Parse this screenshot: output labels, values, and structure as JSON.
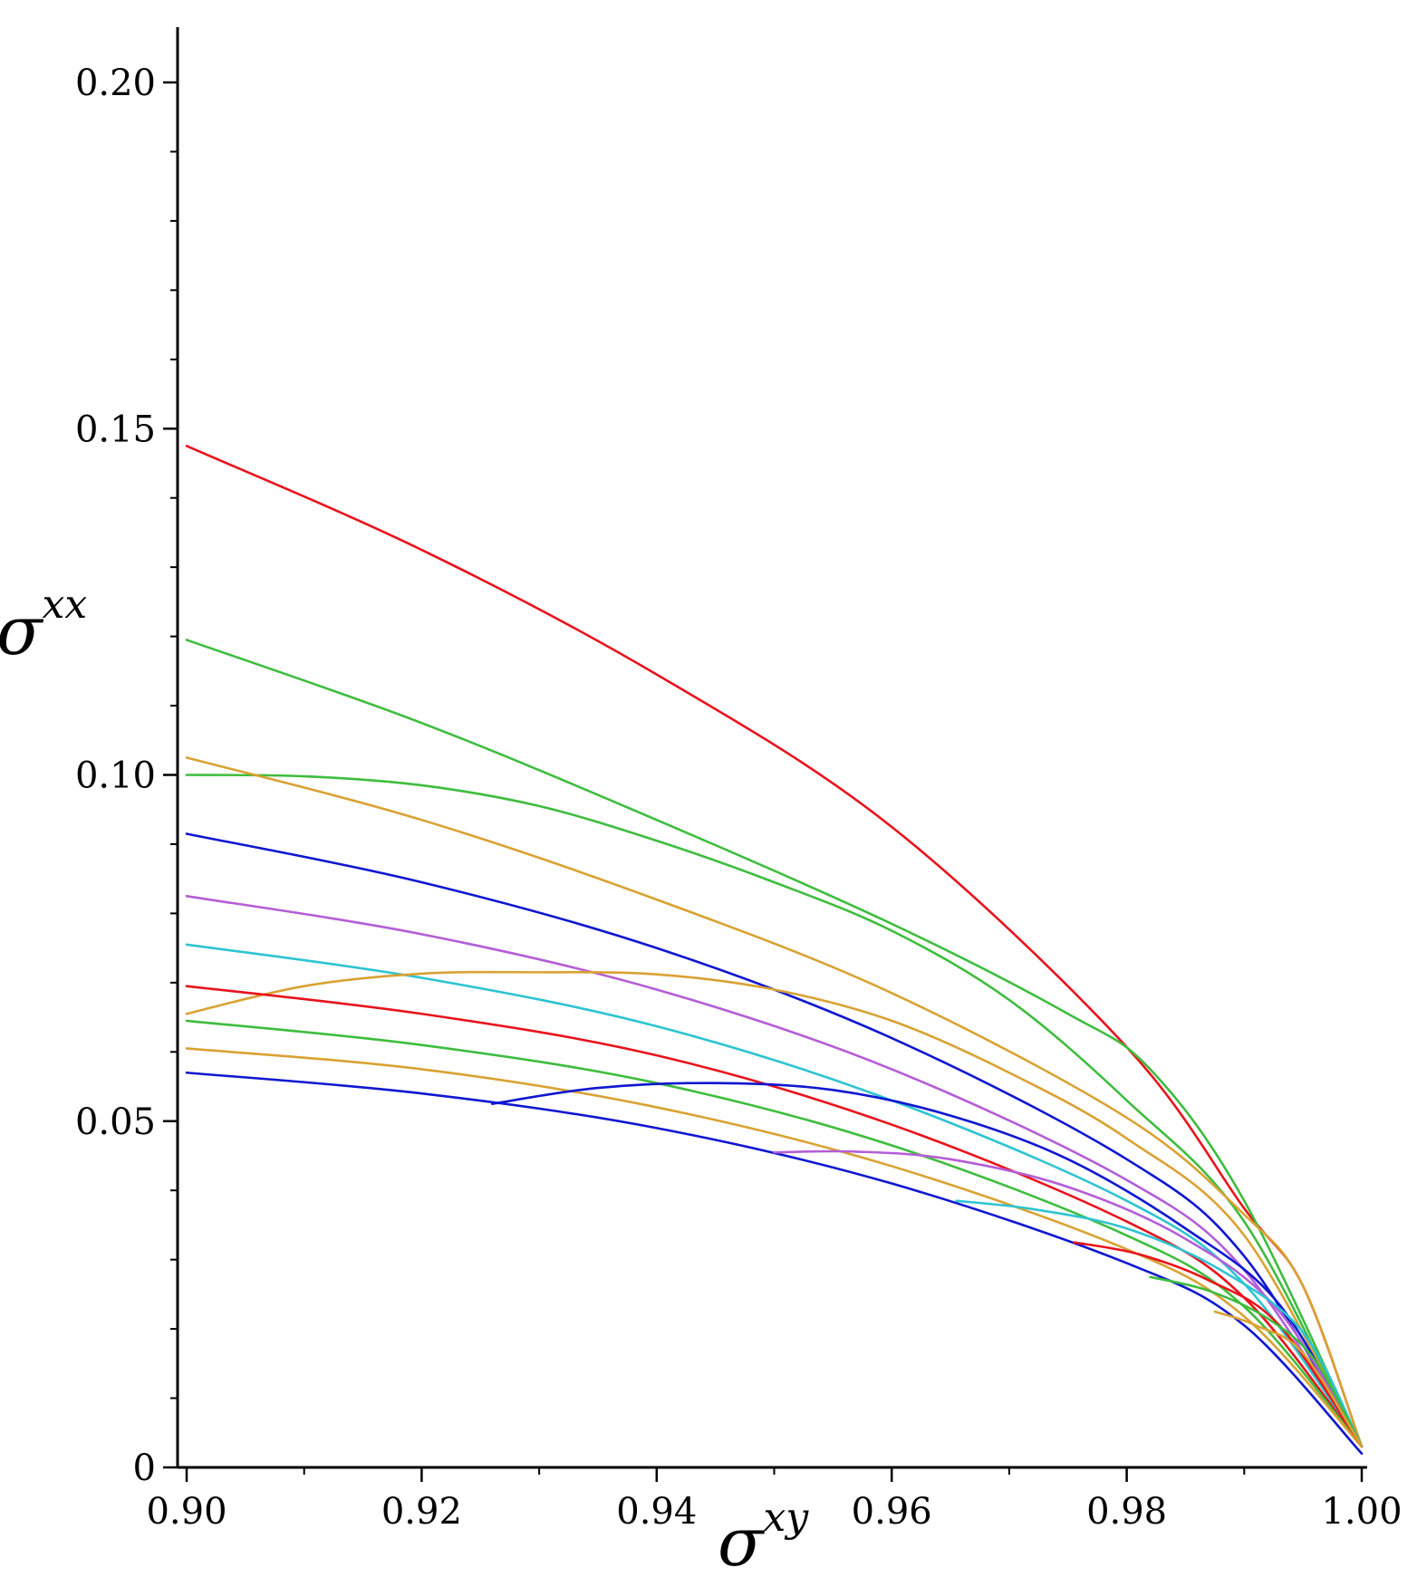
{
  "chart_data": {
    "type": "line",
    "title": "",
    "xlabel": "σ^{xy}",
    "ylabel": "σ^{xx}",
    "xlabel_parts": {
      "base": "σ",
      "sup": "xy"
    },
    "ylabel_parts": {
      "base": "σ",
      "sup": "xx"
    },
    "xlim": [
      0.9,
      1.0
    ],
    "ylim": [
      0,
      0.2
    ],
    "x_ticks": [
      0.9,
      0.92,
      0.94,
      0.96,
      0.98,
      1.0
    ],
    "x_tick_labels": [
      "0.90",
      "0.92",
      "0.94",
      "0.96",
      "0.98",
      "1.00"
    ],
    "y_ticks": [
      0,
      0.05,
      0.1,
      0.15,
      0.2
    ],
    "y_tick_labels": [
      "0",
      "0.05",
      "0.10",
      "0.15",
      "0.20"
    ],
    "grid": false,
    "legend": "none",
    "series": [
      {
        "color": "#e8131c",
        "points": [
          [
            0.9,
            0.1475
          ],
          [
            0.92,
            0.1325
          ],
          [
            0.94,
            0.1145
          ],
          [
            0.96,
            0.0925
          ],
          [
            0.98,
            0.0607
          ],
          [
            0.99,
            0.0374
          ],
          [
            0.995,
            0.0262
          ],
          [
            1.0,
            0.003
          ]
        ]
      },
      {
        "color": "#3ebd3e",
        "points": [
          [
            0.9,
            0.1195
          ],
          [
            0.92,
            0.1075
          ],
          [
            0.94,
            0.0935
          ],
          [
            0.96,
            0.0785
          ],
          [
            0.975,
            0.0655
          ],
          [
            0.982,
            0.0575
          ],
          [
            0.99,
            0.0385
          ],
          [
            1.0,
            0.003
          ]
        ]
      },
      {
        "color": "#3ebd3e",
        "points": [
          [
            0.9,
            0.1
          ],
          [
            0.91,
            0.0998
          ],
          [
            0.92,
            0.0985
          ],
          [
            0.93,
            0.0955
          ],
          [
            0.94,
            0.0905
          ],
          [
            0.95,
            0.0845
          ],
          [
            0.96,
            0.0775
          ],
          [
            0.97,
            0.0675
          ],
          [
            0.98,
            0.053
          ],
          [
            0.99,
            0.0355
          ],
          [
            1.0,
            0.003
          ]
        ]
      },
      {
        "color": "#d9a233",
        "points": [
          [
            0.9,
            0.1025
          ],
          [
            0.92,
            0.0935
          ],
          [
            0.94,
            0.082
          ],
          [
            0.96,
            0.0685
          ],
          [
            0.98,
            0.0505
          ],
          [
            0.99,
            0.0365
          ],
          [
            0.995,
            0.0262
          ],
          [
            1.0,
            0.003
          ]
        ]
      },
      {
        "color": "#0f17d0",
        "points": [
          [
            0.9,
            0.0915
          ],
          [
            0.92,
            0.0845
          ],
          [
            0.94,
            0.075
          ],
          [
            0.96,
            0.062
          ],
          [
            0.98,
            0.0445
          ],
          [
            0.99,
            0.0305
          ],
          [
            1.0,
            0.003
          ]
        ]
      },
      {
        "color": "#b45ed6",
        "points": [
          [
            0.9,
            0.0825
          ],
          [
            0.92,
            0.077
          ],
          [
            0.94,
            0.069
          ],
          [
            0.96,
            0.0575
          ],
          [
            0.98,
            0.0415
          ],
          [
            0.99,
            0.0285
          ],
          [
            1.0,
            0.003
          ]
        ]
      },
      {
        "color": "#2ec4d2",
        "points": [
          [
            0.9,
            0.0755
          ],
          [
            0.92,
            0.0707
          ],
          [
            0.94,
            0.0637
          ],
          [
            0.96,
            0.053
          ],
          [
            0.98,
            0.0385
          ],
          [
            0.99,
            0.0265
          ],
          [
            1.0,
            0.003
          ]
        ]
      },
      {
        "color": "#d9a233",
        "points": [
          [
            0.9,
            0.0655
          ],
          [
            0.91,
            0.0695
          ],
          [
            0.92,
            0.0713
          ],
          [
            0.93,
            0.0715
          ],
          [
            0.94,
            0.0712
          ],
          [
            0.95,
            0.069
          ],
          [
            0.96,
            0.0645
          ],
          [
            0.97,
            0.057
          ],
          [
            0.98,
            0.0475
          ],
          [
            0.99,
            0.0335
          ],
          [
            1.0,
            0.003
          ]
        ]
      },
      {
        "color": "#e8131c",
        "points": [
          [
            0.9,
            0.0695
          ],
          [
            0.92,
            0.0655
          ],
          [
            0.94,
            0.0595
          ],
          [
            0.96,
            0.0495
          ],
          [
            0.98,
            0.0355
          ],
          [
            0.99,
            0.0245
          ],
          [
            1.0,
            0.003
          ]
        ]
      },
      {
        "color": "#3ebd3e",
        "points": [
          [
            0.9,
            0.0645
          ],
          [
            0.92,
            0.061
          ],
          [
            0.94,
            0.0555
          ],
          [
            0.96,
            0.0465
          ],
          [
            0.98,
            0.0335
          ],
          [
            0.99,
            0.0232
          ],
          [
            1.0,
            0.003
          ]
        ]
      },
      {
        "color": "#d9a233",
        "points": [
          [
            0.9,
            0.0605
          ],
          [
            0.92,
            0.0575
          ],
          [
            0.94,
            0.052
          ],
          [
            0.96,
            0.0435
          ],
          [
            0.98,
            0.0315
          ],
          [
            0.99,
            0.0218
          ],
          [
            1.0,
            0.003
          ]
        ]
      },
      {
        "color": "#0f17d0",
        "points": [
          [
            0.9,
            0.057
          ],
          [
            0.92,
            0.054
          ],
          [
            0.94,
            0.049
          ],
          [
            0.96,
            0.041
          ],
          [
            0.98,
            0.0295
          ],
          [
            0.99,
            0.0205
          ],
          [
            1.0,
            0.002
          ]
        ]
      },
      {
        "color": "#0f17d0",
        "points": [
          [
            0.926,
            0.0525
          ],
          [
            0.935,
            0.0548
          ],
          [
            0.945,
            0.0555
          ],
          [
            0.955,
            0.0545
          ],
          [
            0.965,
            0.0508
          ],
          [
            0.975,
            0.0445
          ],
          [
            0.985,
            0.0345
          ],
          [
            0.993,
            0.0235
          ],
          [
            1.0,
            0.003
          ]
        ]
      },
      {
        "color": "#b45ed6",
        "points": [
          [
            0.95,
            0.0455
          ],
          [
            0.957,
            0.0456
          ],
          [
            0.965,
            0.0445
          ],
          [
            0.975,
            0.0405
          ],
          [
            0.985,
            0.033
          ],
          [
            0.993,
            0.0225
          ],
          [
            1.0,
            0.003
          ]
        ]
      },
      {
        "color": "#2ec4d2",
        "points": [
          [
            0.9655,
            0.0385
          ],
          [
            0.972,
            0.0373
          ],
          [
            0.98,
            0.0345
          ],
          [
            0.988,
            0.0285
          ],
          [
            0.995,
            0.0195
          ],
          [
            1.0,
            0.003
          ]
        ]
      },
      {
        "color": "#e8131c",
        "points": [
          [
            0.9755,
            0.0325
          ],
          [
            0.981,
            0.0308
          ],
          [
            0.987,
            0.027
          ],
          [
            0.993,
            0.0205
          ],
          [
            1.0,
            0.003
          ]
        ]
      },
      {
        "color": "#3ebd3e",
        "points": [
          [
            0.982,
            0.0275
          ],
          [
            0.987,
            0.0255
          ],
          [
            0.992,
            0.0215
          ],
          [
            0.996,
            0.0155
          ],
          [
            1.0,
            0.003
          ]
        ]
      },
      {
        "color": "#d9a233",
        "points": [
          [
            0.9875,
            0.0225
          ],
          [
            0.991,
            0.0205
          ],
          [
            0.995,
            0.0165
          ],
          [
            1.0,
            0.003
          ]
        ]
      }
    ]
  }
}
